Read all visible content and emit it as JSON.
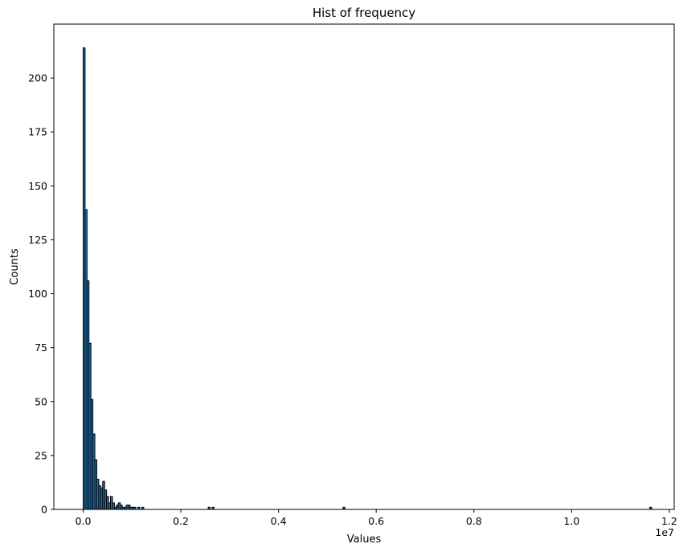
{
  "chart_data": {
    "type": "bar",
    "title": "Hist of frequency",
    "xlabel": "Values",
    "ylabel": "Counts",
    "x_offset_label": "1e7",
    "x_scale": 10000000,
    "xlim": [
      -0.06,
      1.21
    ],
    "ylim": [
      0,
      225
    ],
    "x_ticks": [
      0.0,
      0.2,
      0.4,
      0.6,
      0.8,
      1.0,
      1.2
    ],
    "x_tick_labels": [
      "0.0",
      "0.2",
      "0.4",
      "0.6",
      "0.8",
      "1.0",
      "1.2"
    ],
    "y_ticks": [
      0,
      25,
      50,
      75,
      100,
      125,
      150,
      175,
      200
    ],
    "y_tick_labels": [
      "0",
      "25",
      "50",
      "75",
      "100",
      "125",
      "150",
      "175",
      "200"
    ],
    "bin_width": 0.004,
    "bar_color": "#1f77b4",
    "edge_color": "#000000",
    "bars": [
      {
        "x": 0.0,
        "count": 214
      },
      {
        "x": 0.004,
        "count": 139
      },
      {
        "x": 0.008,
        "count": 106
      },
      {
        "x": 0.012,
        "count": 77
      },
      {
        "x": 0.016,
        "count": 51
      },
      {
        "x": 0.02,
        "count": 35
      },
      {
        "x": 0.024,
        "count": 23
      },
      {
        "x": 0.028,
        "count": 14
      },
      {
        "x": 0.032,
        "count": 11
      },
      {
        "x": 0.036,
        "count": 10
      },
      {
        "x": 0.04,
        "count": 13
      },
      {
        "x": 0.044,
        "count": 9
      },
      {
        "x": 0.048,
        "count": 6
      },
      {
        "x": 0.052,
        "count": 3
      },
      {
        "x": 0.056,
        "count": 6
      },
      {
        "x": 0.06,
        "count": 3
      },
      {
        "x": 0.064,
        "count": 1
      },
      {
        "x": 0.068,
        "count": 2
      },
      {
        "x": 0.072,
        "count": 3
      },
      {
        "x": 0.076,
        "count": 2
      },
      {
        "x": 0.08,
        "count": 1
      },
      {
        "x": 0.084,
        "count": 1
      },
      {
        "x": 0.088,
        "count": 2
      },
      {
        "x": 0.092,
        "count": 2
      },
      {
        "x": 0.096,
        "count": 1
      },
      {
        "x": 0.1,
        "count": 1
      },
      {
        "x": 0.104,
        "count": 1
      },
      {
        "x": 0.112,
        "count": 1
      },
      {
        "x": 0.12,
        "count": 1
      },
      {
        "x": 0.256,
        "count": 1
      },
      {
        "x": 0.264,
        "count": 1
      },
      {
        "x": 0.532,
        "count": 1
      },
      {
        "x": 1.16,
        "count": 1
      }
    ]
  }
}
